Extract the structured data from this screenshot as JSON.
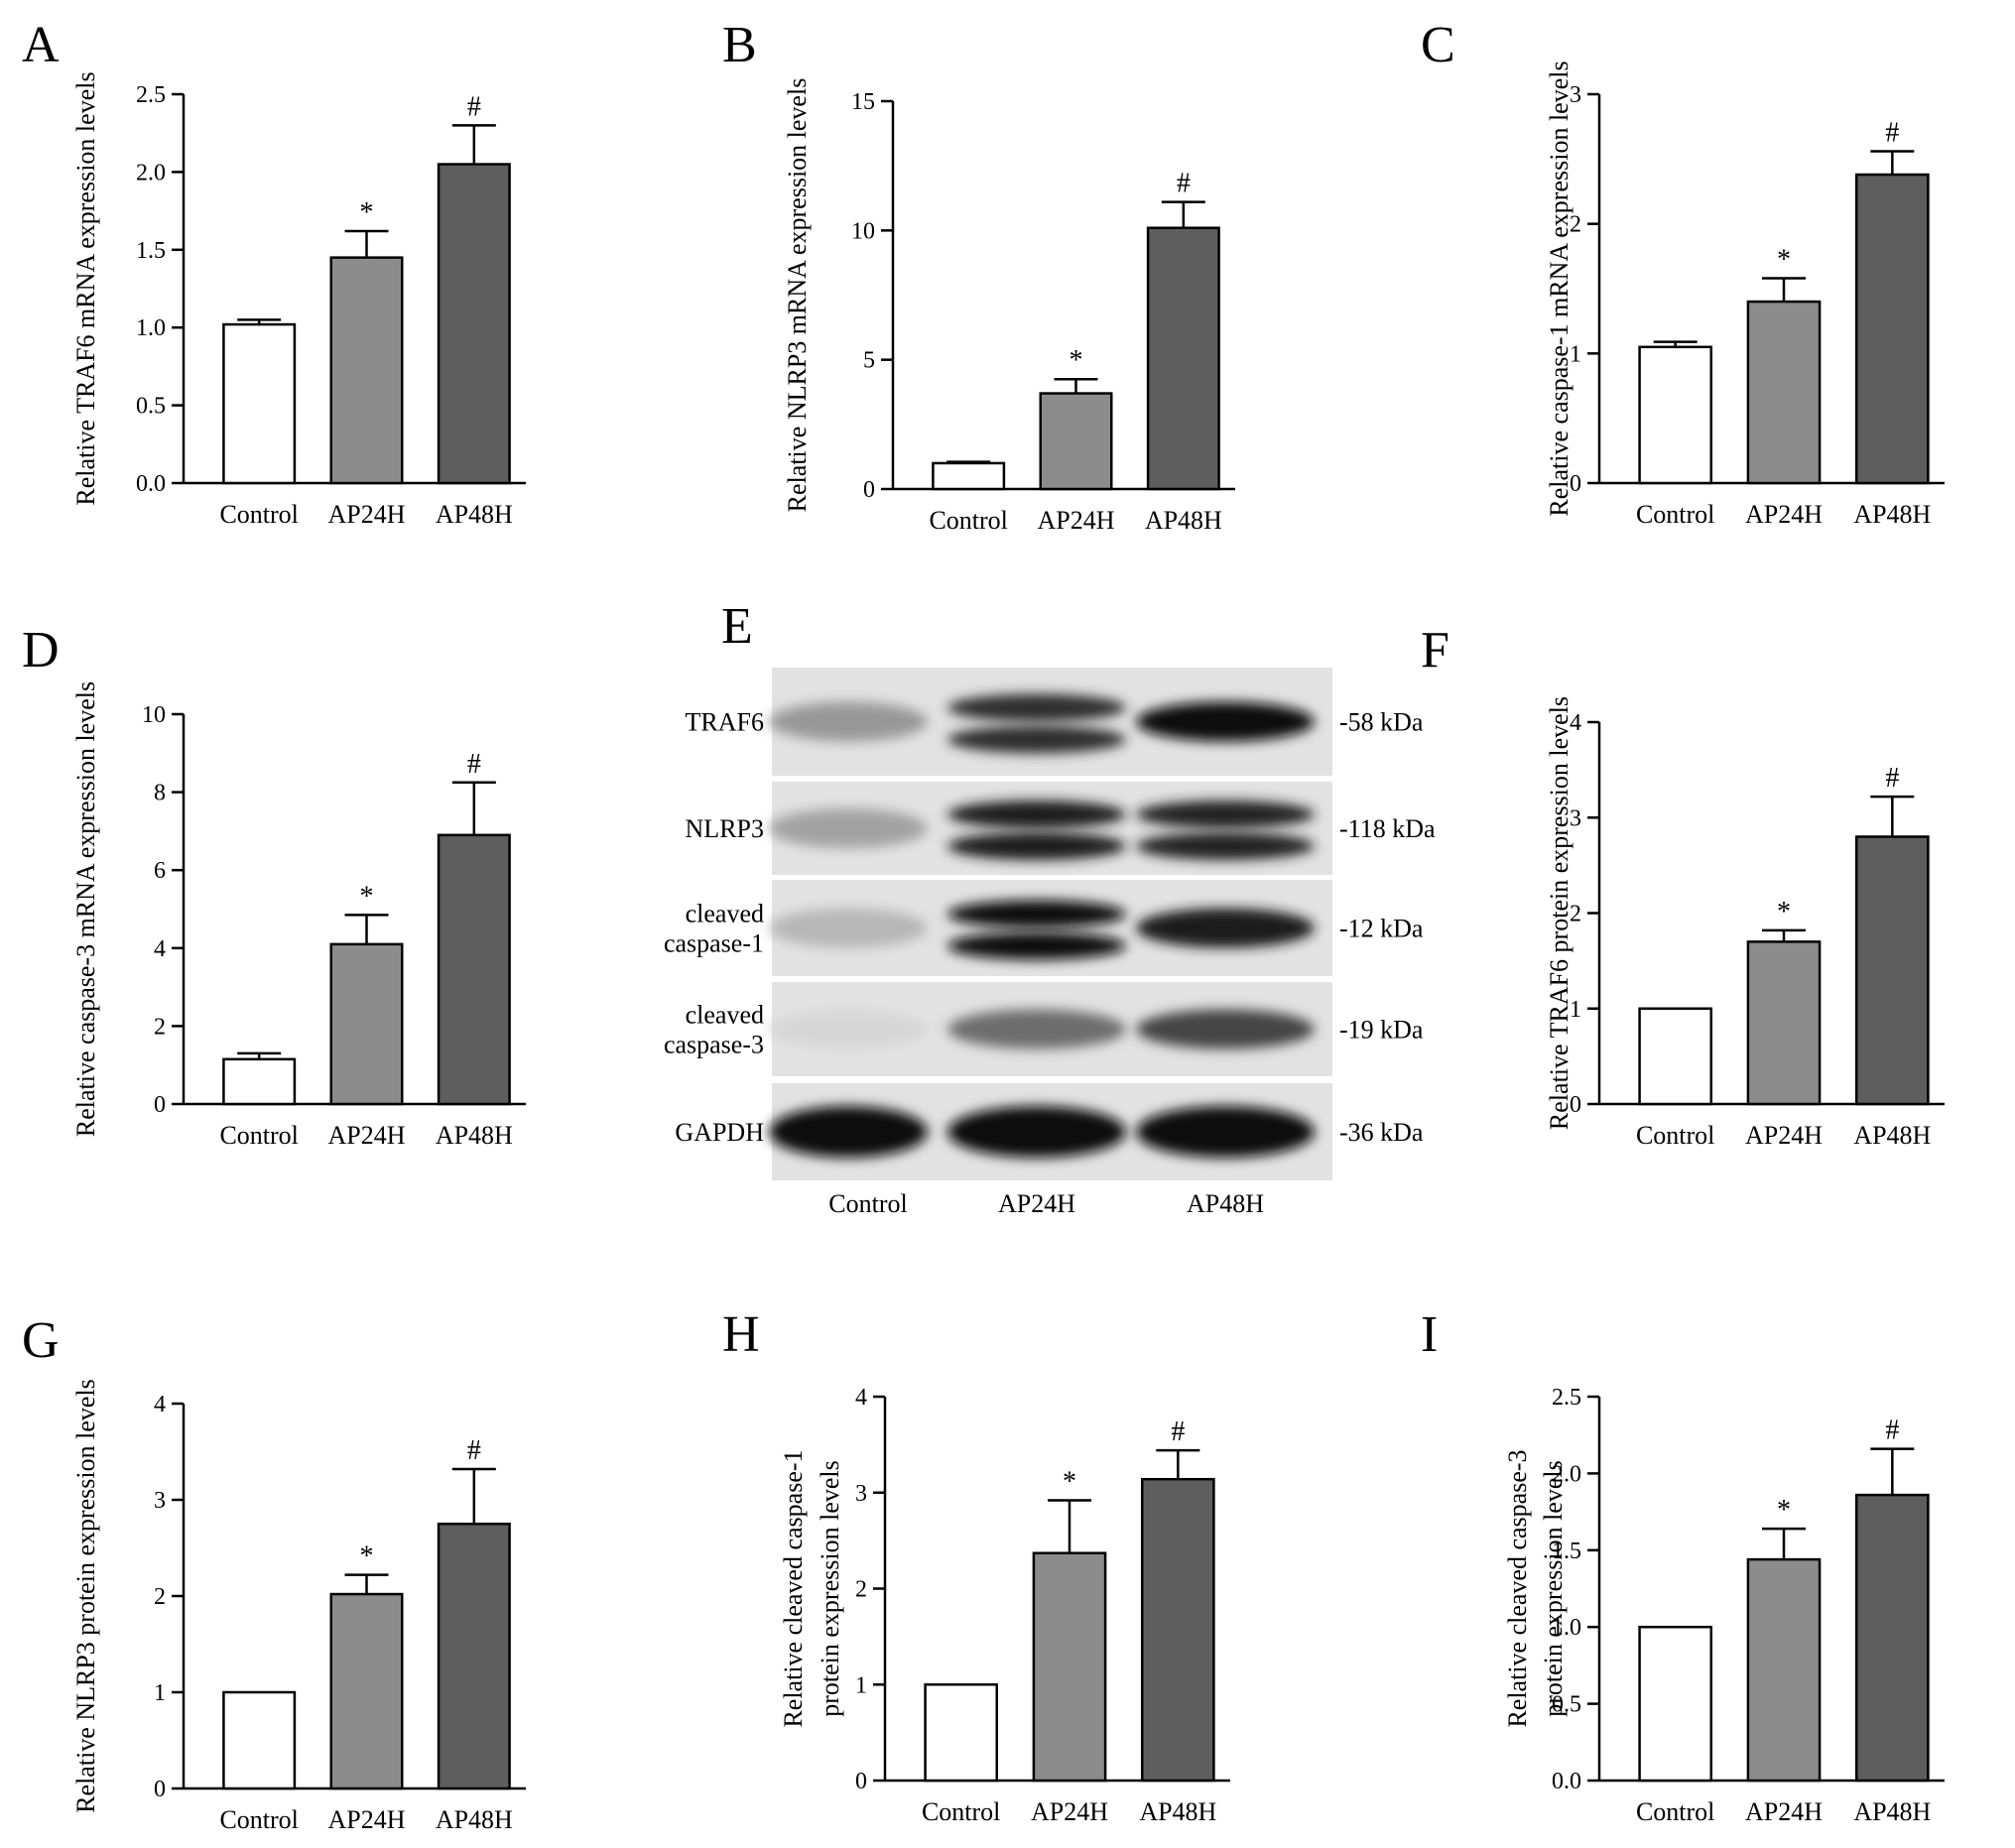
{
  "colors": {
    "Control": "#ffffff",
    "AP24H": "#8c8c8c",
    "AP48H": "#5e5e5e",
    "axis": "#000000"
  },
  "chart_data": [
    {
      "panel": "A",
      "type": "bar",
      "categories": [
        "Control",
        "AP24H",
        "AP48H"
      ],
      "values": [
        1.02,
        1.45,
        2.05
      ],
      "errors": [
        0.03,
        0.17,
        0.25
      ],
      "significance": [
        "",
        "*",
        "#"
      ],
      "ylabel": "Relative TRAF6 mRNA expression levels",
      "ylim": [
        0,
        2.5
      ],
      "yticks": [
        "0.0",
        "0.5",
        "1.0",
        "1.5",
        "2.0",
        "2.5"
      ]
    },
    {
      "panel": "B",
      "type": "bar",
      "categories": [
        "Control",
        "AP24H",
        "AP48H"
      ],
      "values": [
        1.0,
        3.7,
        10.1
      ],
      "errors": [
        0.05,
        0.55,
        1.0
      ],
      "significance": [
        "",
        "*",
        "#"
      ],
      "ylabel": "Relative NLRP3 mRNA expression levels",
      "ylim": [
        0,
        15
      ],
      "yticks": [
        "0",
        "5",
        "10",
        "15"
      ]
    },
    {
      "panel": "C",
      "type": "bar",
      "categories": [
        "Control",
        "AP24H",
        "AP48H"
      ],
      "values": [
        1.05,
        1.4,
        2.38
      ],
      "errors": [
        0.04,
        0.18,
        0.18
      ],
      "significance": [
        "",
        "*",
        "#"
      ],
      "ylabel": "Relative caspase-1 mRNA expression levels",
      "ylim": [
        0,
        3
      ],
      "yticks": [
        "0",
        "1",
        "2",
        "3"
      ]
    },
    {
      "panel": "D",
      "type": "bar",
      "categories": [
        "Control",
        "AP24H",
        "AP48H"
      ],
      "values": [
        1.15,
        4.1,
        6.9
      ],
      "errors": [
        0.15,
        0.75,
        1.35
      ],
      "significance": [
        "",
        "*",
        "#"
      ],
      "ylabel": "Relative caspase-3 mRNA expression levels",
      "ylim": [
        0,
        10
      ],
      "yticks": [
        "0",
        "2",
        "4",
        "6",
        "8",
        "10"
      ]
    },
    {
      "panel": "F",
      "type": "bar",
      "categories": [
        "Control",
        "AP24H",
        "AP48H"
      ],
      "values": [
        1.0,
        1.7,
        2.8
      ],
      "errors": [
        0.0,
        0.12,
        0.42
      ],
      "significance": [
        "",
        "*",
        "#"
      ],
      "ylabel": "Relative TRAF6 protein expression levels",
      "ylim": [
        0,
        4
      ],
      "yticks": [
        "0",
        "1",
        "2",
        "3",
        "4"
      ]
    },
    {
      "panel": "G",
      "type": "bar",
      "categories": [
        "Control",
        "AP24H",
        "AP48H"
      ],
      "values": [
        1.0,
        2.02,
        2.75
      ],
      "errors": [
        0.0,
        0.2,
        0.57
      ],
      "significance": [
        "",
        "*",
        "#"
      ],
      "ylabel": "Relative NLRP3 protein expression levels",
      "ylim": [
        0,
        4
      ],
      "yticks": [
        "0",
        "1",
        "2",
        "3",
        "4"
      ]
    },
    {
      "panel": "H",
      "type": "bar",
      "categories": [
        "Control",
        "AP24H",
        "AP48H"
      ],
      "values": [
        1.0,
        2.37,
        3.14
      ],
      "errors": [
        0.0,
        0.55,
        0.3
      ],
      "significance": [
        "",
        "*",
        "#"
      ],
      "ylabel": [
        "Relative cleaved caspase-1",
        "protein expression levels"
      ],
      "ylim": [
        0,
        4
      ],
      "yticks": [
        "0",
        "1",
        "2",
        "3",
        "4"
      ]
    },
    {
      "panel": "I",
      "type": "bar",
      "categories": [
        "Control",
        "AP24H",
        "AP48H"
      ],
      "values": [
        1.0,
        1.44,
        1.86
      ],
      "errors": [
        0.0,
        0.2,
        0.3
      ],
      "significance": [
        "",
        "*",
        "#"
      ],
      "ylabel": [
        "Relative cleaved caspase-3",
        "protein expression levels"
      ],
      "ylim": [
        0,
        2.5
      ],
      "yticks": [
        "0.0",
        "0.5",
        "1.0",
        "1.5",
        "2.0",
        "2.5"
      ]
    }
  ],
  "blot": {
    "panel": "E",
    "lanes": [
      "Control",
      "AP24H",
      "AP48H"
    ],
    "rows": [
      {
        "name": [
          "TRAF6"
        ],
        "kda": "-58 kDa",
        "intensity": [
          0.35,
          0.85,
          1.0
        ],
        "double": [
          false,
          true,
          false
        ]
      },
      {
        "name": [
          "NLRP3"
        ],
        "kda": "-118 kDa",
        "intensity": [
          0.3,
          0.95,
          0.9
        ],
        "double": [
          false,
          true,
          true
        ]
      },
      {
        "name": [
          "cleaved",
          "caspase-1"
        ],
        "kda": "-12 kDa",
        "intensity": [
          0.2,
          1.0,
          0.95
        ],
        "double": [
          false,
          true,
          false
        ]
      },
      {
        "name": [
          "cleaved",
          "caspase-3"
        ],
        "kda": "-19 kDa",
        "intensity": [
          0.05,
          0.55,
          0.75
        ],
        "double": [
          false,
          false,
          false
        ]
      },
      {
        "name": [
          "GAPDH"
        ],
        "kda": "-36 kDa",
        "intensity": [
          1.0,
          1.0,
          1.0
        ],
        "double": [
          false,
          false,
          false
        ]
      }
    ]
  }
}
